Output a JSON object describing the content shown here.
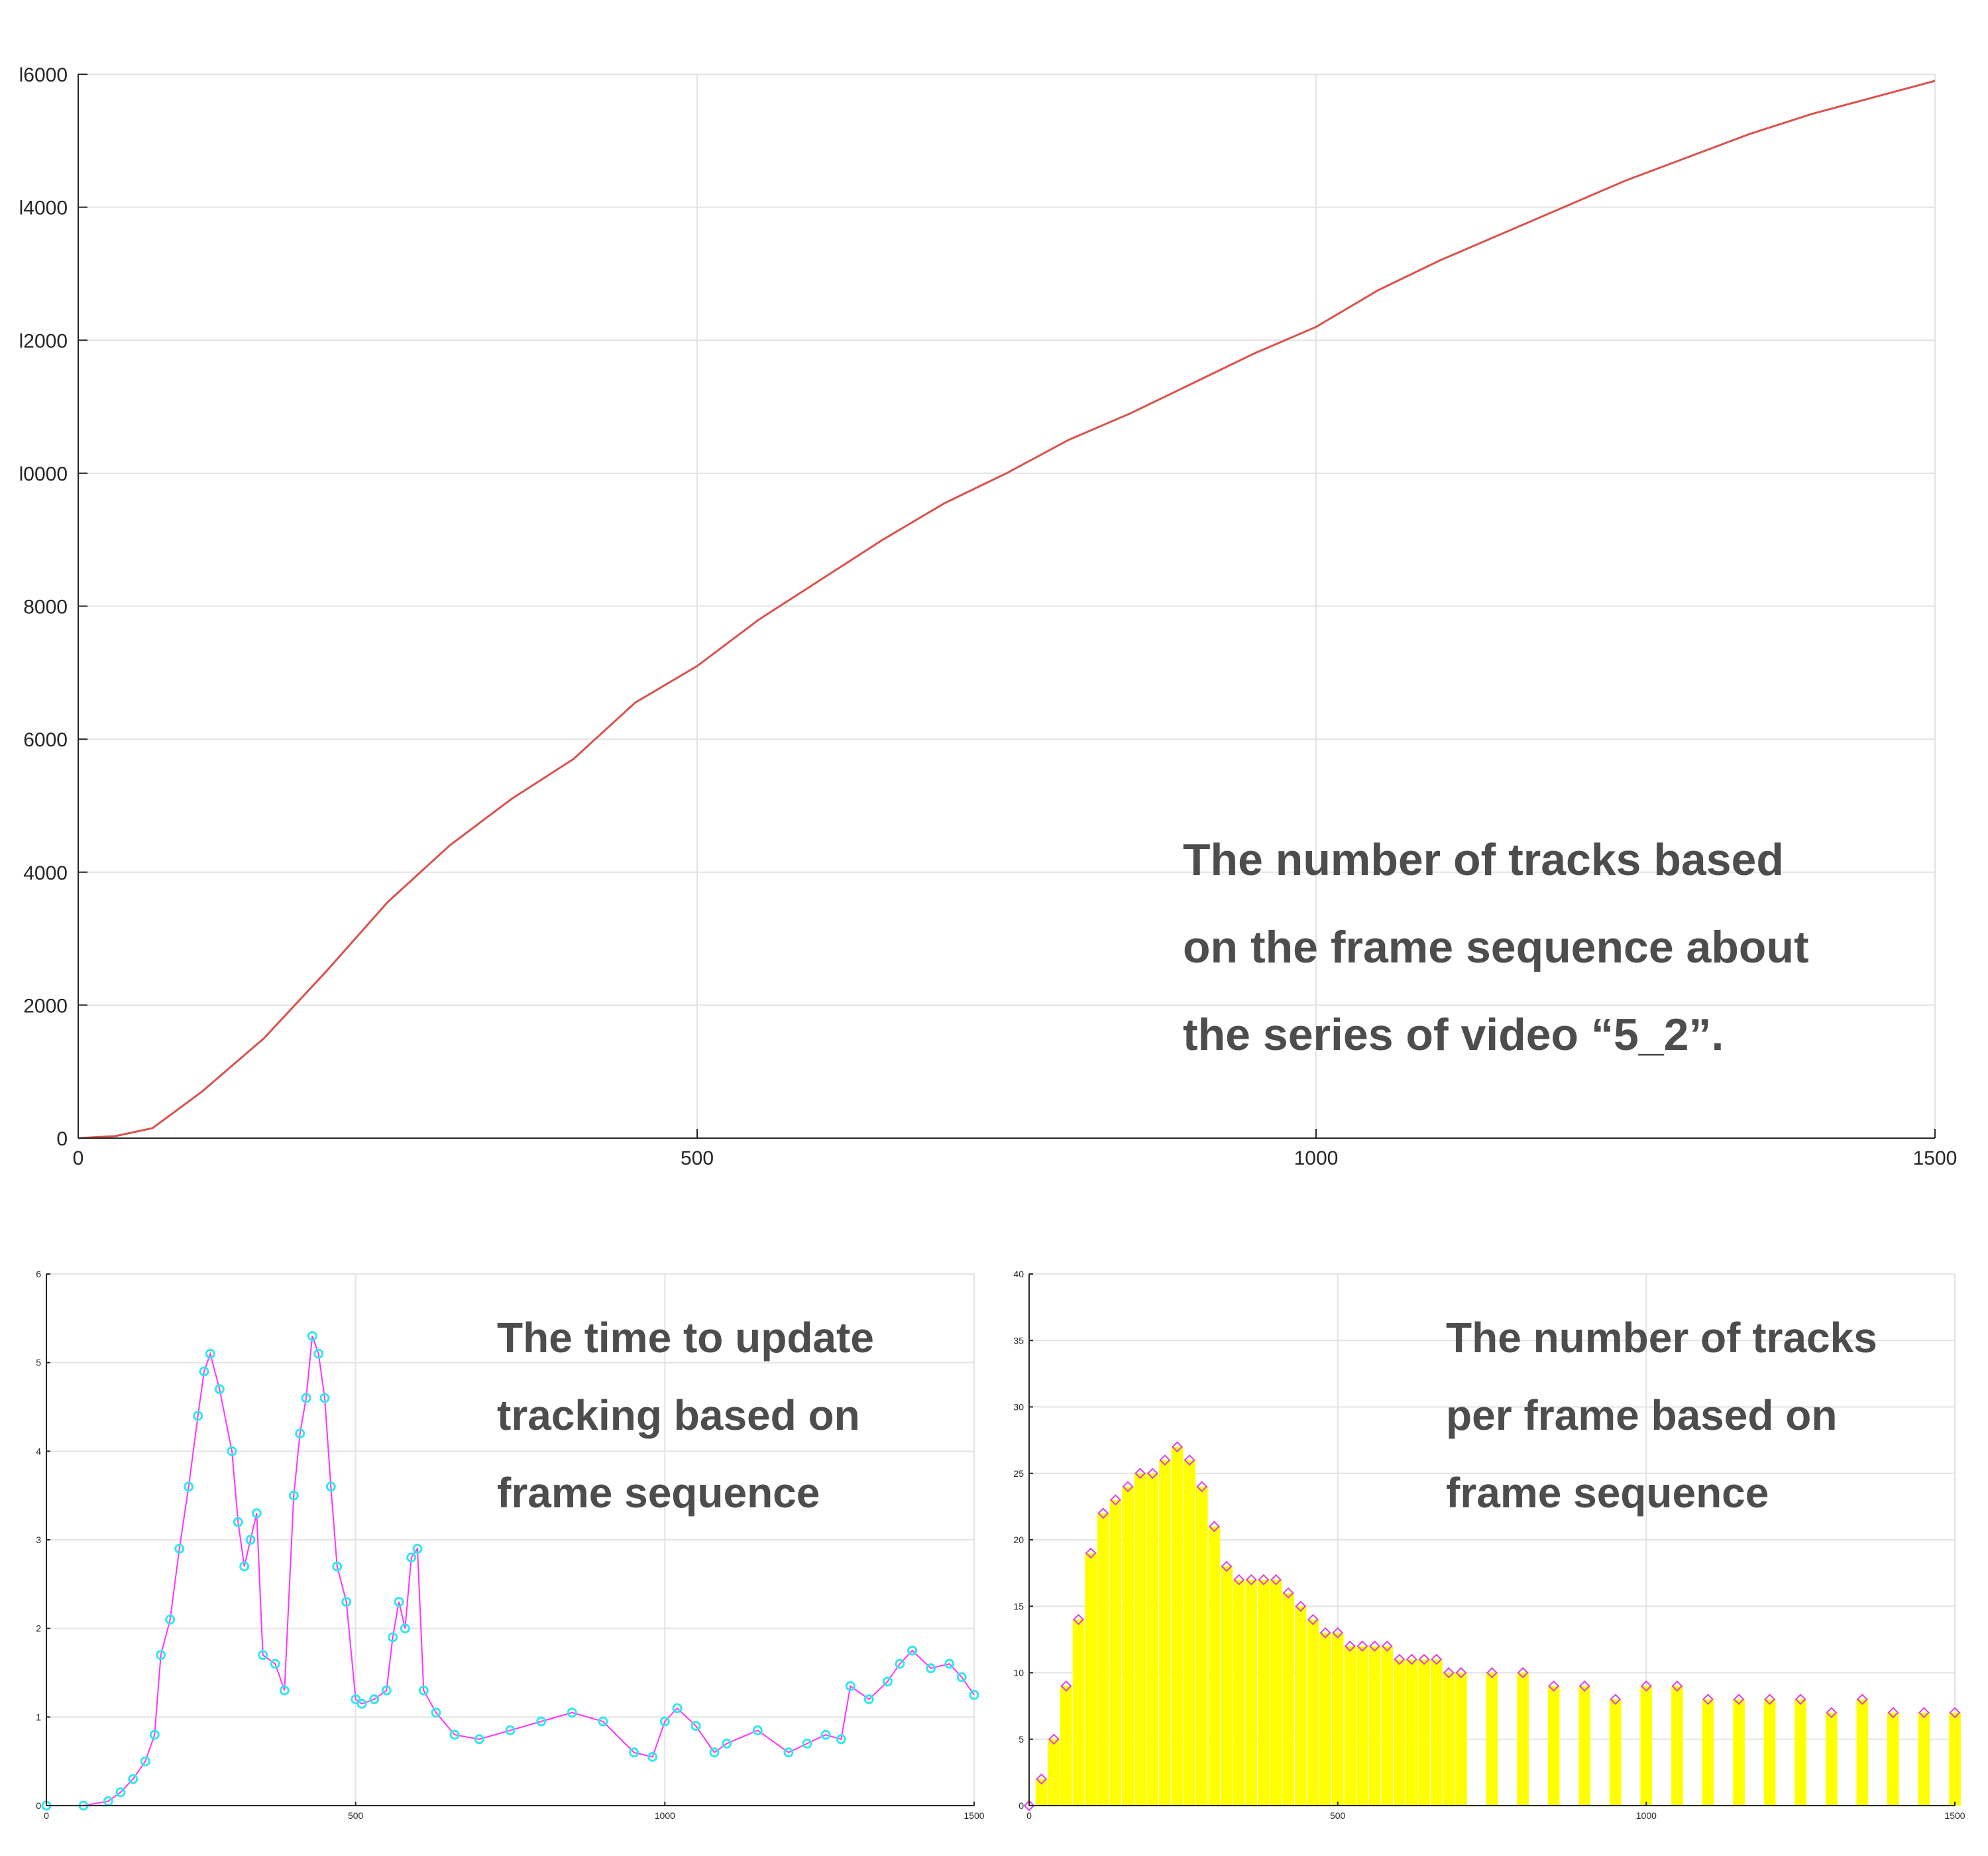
{
  "chart_data": [
    {
      "type": "line",
      "xlim": [
        0,
        1500
      ],
      "ylim": [
        0,
        16000
      ],
      "xticks": [
        "0",
        "500",
        "1000",
        "1500"
      ],
      "yticks": [
        "0",
        "2000",
        "4000",
        "6000",
        "8000",
        "l0000",
        "l2000",
        "l4000",
        "l6000"
      ],
      "grid": true,
      "line_color": "#d9534f",
      "annotation": [
        "The number of tracks based",
        "on the frame sequence about",
        "the series of video “5_2”."
      ],
      "series": [
        {
          "x": [
            0,
            30,
            60,
            100,
            150,
            200,
            250,
            300,
            350,
            400,
            450,
            500,
            550,
            600,
            650,
            700,
            750,
            800,
            850,
            900,
            950,
            1000,
            1050,
            1100,
            1150,
            1200,
            1250,
            1300,
            1350,
            1400,
            1450,
            1500
          ],
          "y": [
            0,
            30,
            150,
            700,
            1500,
            2500,
            3550,
            4400,
            5100,
            5700,
            6550,
            7100,
            7800,
            8400,
            9000,
            9550,
            10000,
            10500,
            10900,
            11350,
            11800,
            12200,
            12750,
            13200,
            13600,
            14000,
            14400,
            14750,
            15100,
            15400,
            15650,
            15900
          ]
        }
      ]
    },
    {
      "type": "line",
      "xlim": [
        0,
        1500
      ],
      "ylim": [
        0,
        6
      ],
      "xticks": [
        "0",
        "500",
        "1000",
        "1500"
      ],
      "yticks": [
        "0",
        "1",
        "2",
        "3",
        "4",
        "5",
        "6"
      ],
      "grid": true,
      "line_color": "#ff33ff",
      "marker_color": "#33e6f2",
      "annotation": [
        "The time to update",
        "tracking based on",
        "frame sequence"
      ],
      "series": [
        {
          "x": [
            0,
            60,
            100,
            120,
            140,
            160,
            175,
            185,
            200,
            215,
            230,
            245,
            255,
            265,
            280,
            300,
            310,
            320,
            330,
            340,
            350,
            370,
            385,
            400,
            410,
            420,
            430,
            440,
            450,
            460,
            470,
            485,
            500,
            510,
            530,
            550,
            560,
            570,
            580,
            590,
            600,
            610,
            630,
            660,
            700,
            750,
            800,
            850,
            900,
            950,
            980,
            1000,
            1020,
            1050,
            1080,
            1100,
            1150,
            1200,
            1230,
            1260,
            1285,
            1300,
            1330,
            1360,
            1380,
            1400,
            1430,
            1460,
            1480,
            1500
          ],
          "y": [
            0,
            0,
            0.05,
            0.15,
            0.3,
            0.5,
            0.8,
            1.7,
            2.1,
            2.9,
            3.6,
            4.4,
            4.9,
            5.1,
            4.7,
            4.0,
            3.2,
            2.7,
            3.0,
            3.3,
            1.7,
            1.6,
            1.3,
            3.5,
            4.2,
            4.6,
            5.3,
            5.1,
            4.6,
            3.6,
            2.7,
            2.3,
            1.2,
            1.15,
            1.2,
            1.3,
            1.9,
            2.3,
            2.0,
            2.8,
            2.9,
            1.3,
            1.05,
            0.8,
            0.75,
            0.85,
            0.95,
            1.05,
            0.95,
            0.6,
            0.55,
            0.95,
            1.1,
            0.9,
            0.6,
            0.7,
            0.85,
            0.6,
            0.7,
            0.8,
            0.75,
            1.35,
            1.2,
            1.4,
            1.6,
            1.75,
            1.55,
            1.6,
            1.45,
            1.25
          ]
        }
      ]
    },
    {
      "type": "bar",
      "xlim": [
        0,
        1500
      ],
      "ylim": [
        0,
        40
      ],
      "xticks": [
        "0",
        "500",
        "1000",
        "1500"
      ],
      "yticks": [
        "0",
        "5",
        "10",
        "15",
        "20",
        "25",
        "30",
        "35",
        "40"
      ],
      "grid": true,
      "bar_color": "#ffff00",
      "marker_color": "#e040e0",
      "annotation": [
        "The number of tracks",
        "per frame based on",
        "frame sequence"
      ],
      "series": [
        {
          "x": [
            0,
            20,
            40,
            60,
            80,
            100,
            120,
            140,
            160,
            180,
            200,
            220,
            240,
            260,
            280,
            300,
            320,
            340,
            360,
            380,
            400,
            420,
            440,
            460,
            480,
            500,
            520,
            540,
            560,
            580,
            600,
            620,
            640,
            660,
            680,
            700,
            750,
            800,
            850,
            900,
            950,
            1000,
            1050,
            1100,
            1150,
            1200,
            1250,
            1300,
            1350,
            1400,
            1450,
            1500
          ],
          "y": [
            0,
            2,
            5,
            9,
            14,
            19,
            22,
            23,
            24,
            25,
            25,
            26,
            27,
            26,
            24,
            21,
            18,
            17,
            17,
            17,
            17,
            16,
            15,
            14,
            13,
            13,
            12,
            12,
            12,
            12,
            11,
            11,
            11,
            11,
            10,
            10,
            10,
            10,
            9,
            9,
            8,
            9,
            9,
            8,
            8,
            8,
            8,
            7,
            8,
            7,
            7,
            7
          ]
        }
      ]
    }
  ]
}
